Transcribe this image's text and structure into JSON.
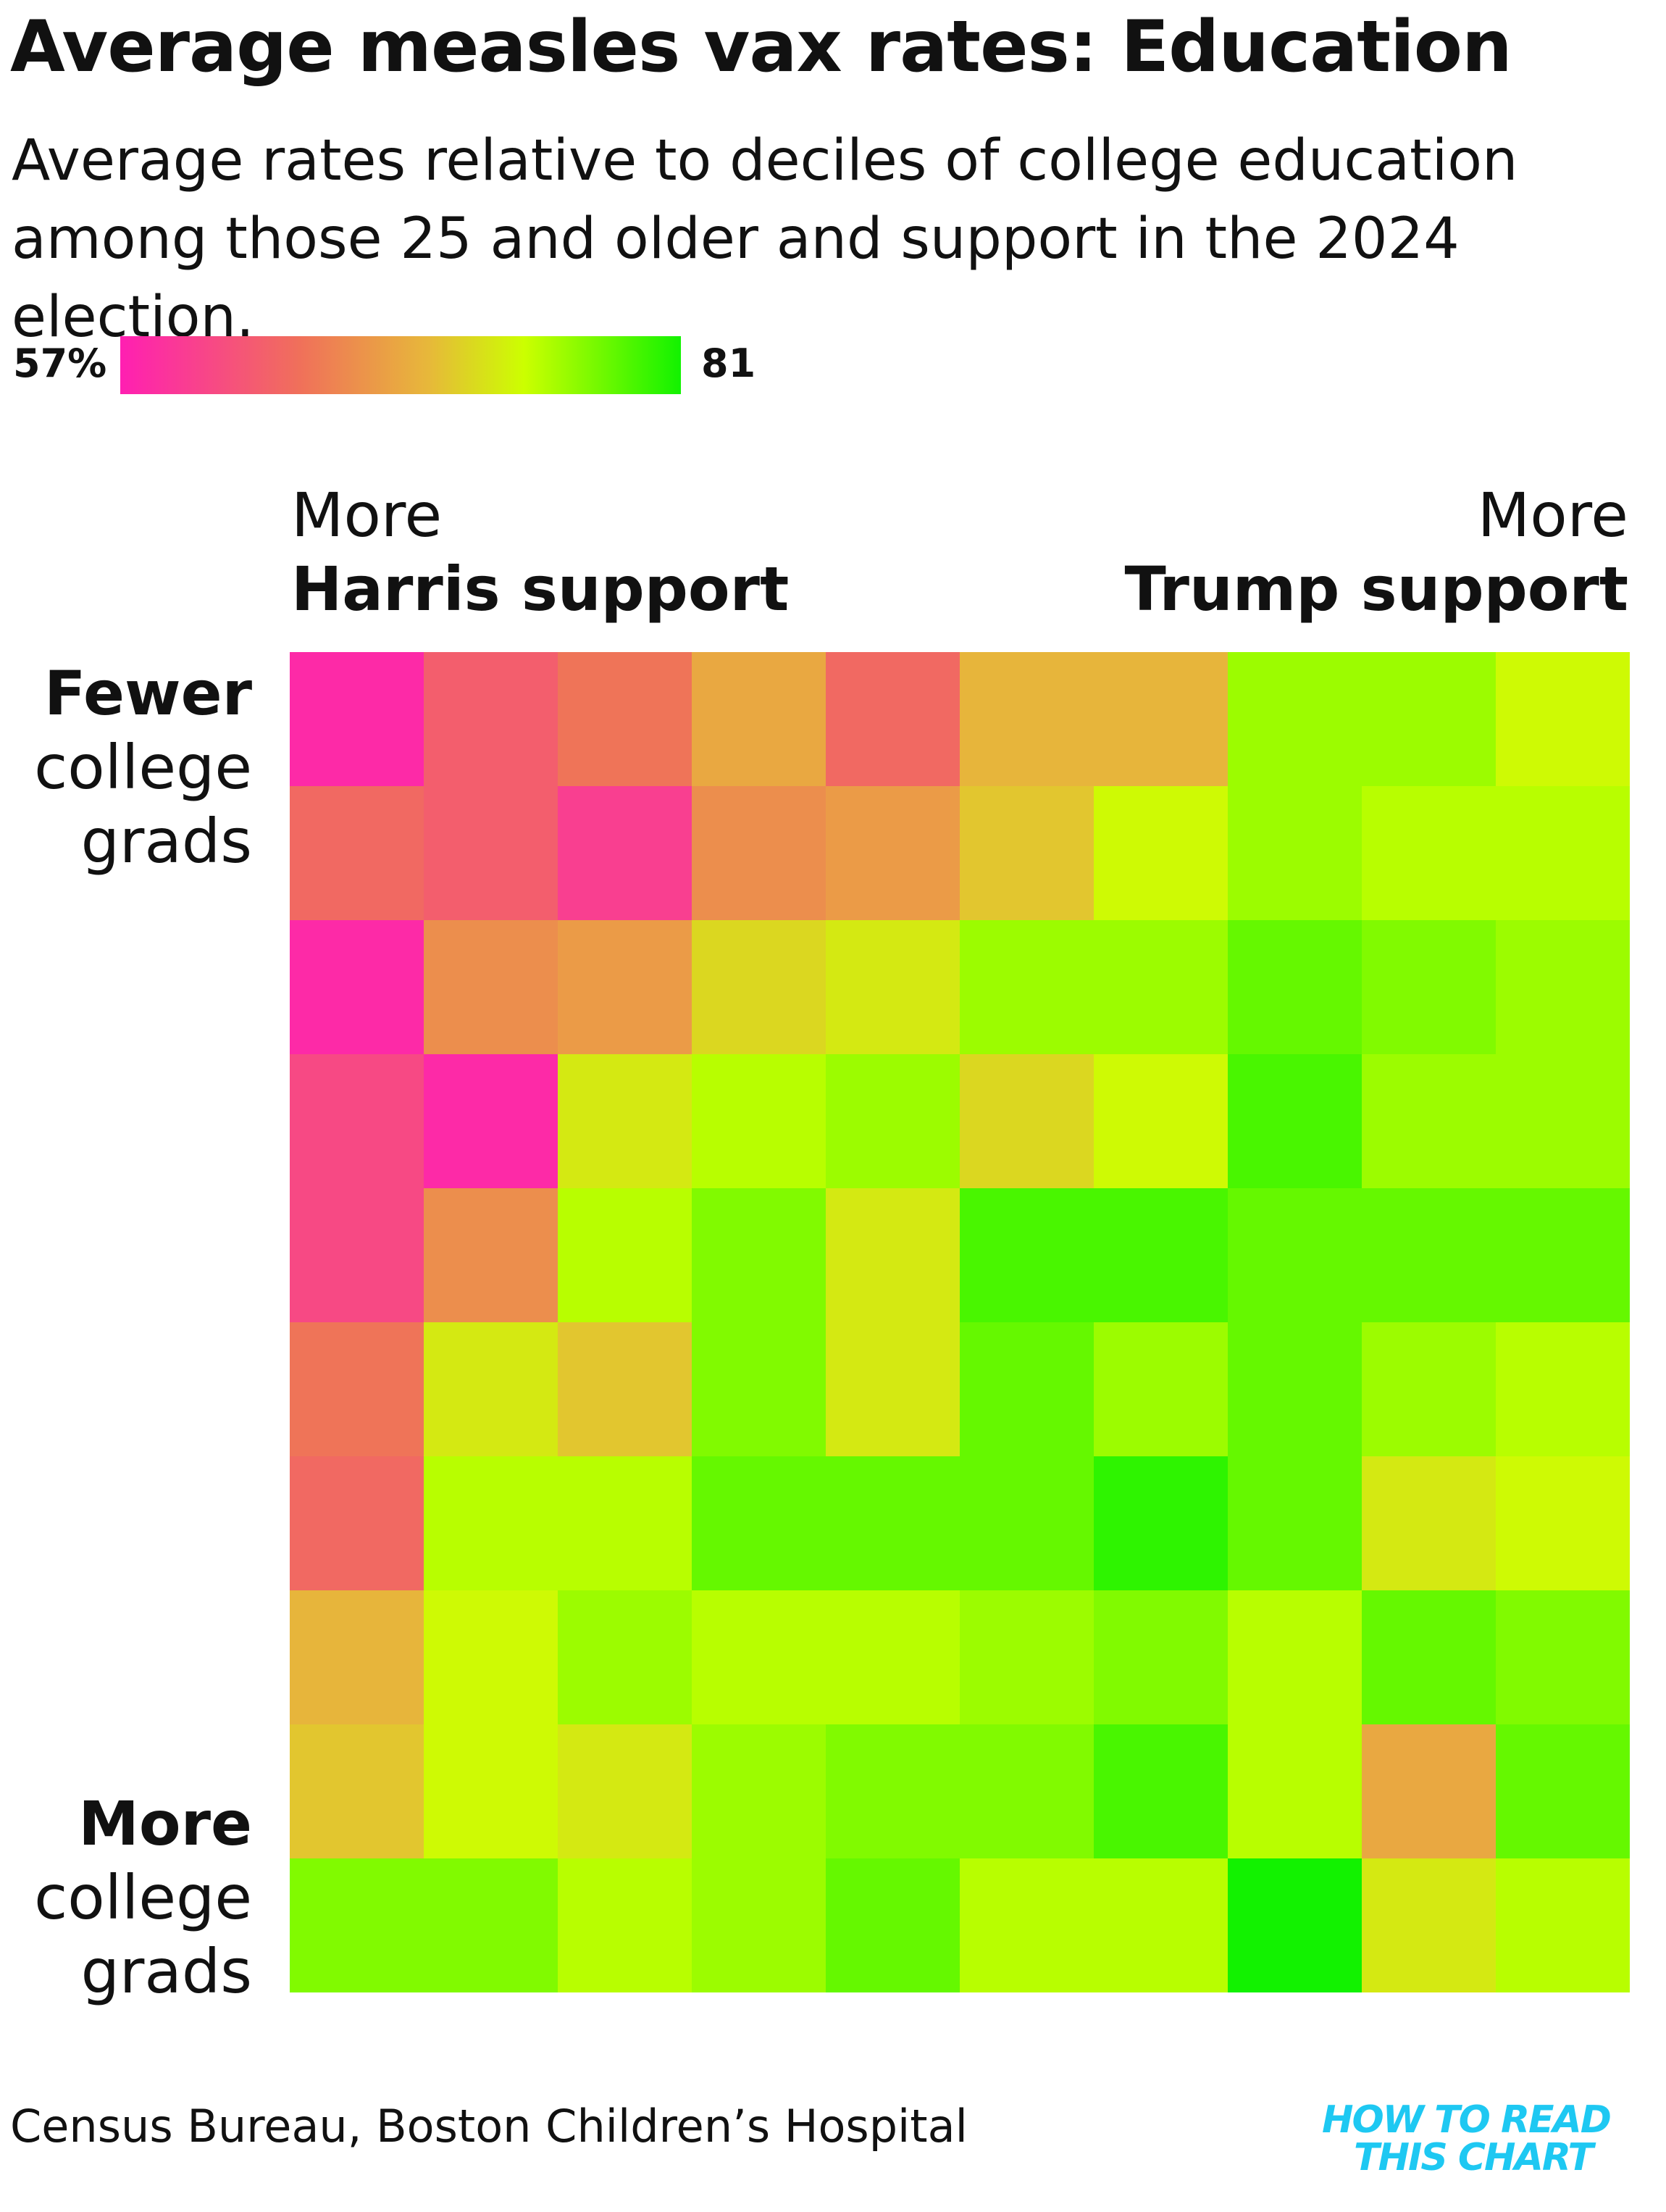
{
  "title": "Average measles vax rates: Education",
  "subtitle": "Average rates relative to deciles of college education among those 25 and older and support in the 2024 election.",
  "legend": {
    "min_label": "57%",
    "max_label": "81",
    "colors": [
      "#ff1fb2",
      "#f0705a",
      "#e7b83a",
      "#ccff00",
      "#12f200"
    ]
  },
  "column_labels": {
    "left_line1": "More",
    "left_line2": "Harris support",
    "right_line1": "More",
    "right_line2": "Trump support"
  },
  "row_labels": {
    "top_line1": "Fewer",
    "top_line2": "college",
    "top_line3": "grads",
    "bottom_line1": "More",
    "bottom_line2": "college",
    "bottom_line3": "grads"
  },
  "source": "Census Bureau, Boston Children’s Hospital",
  "brand": {
    "line1": "HOW TO READ",
    "line2": "THIS CHART"
  },
  "chart_data": {
    "type": "heatmap",
    "title": "Average measles vax rates: Education",
    "x_categories": [
      "1",
      "2",
      "3",
      "4",
      "5",
      "6",
      "7",
      "8",
      "9",
      "10"
    ],
    "y_categories": [
      "1",
      "2",
      "3",
      "4",
      "5",
      "6",
      "7",
      "8",
      "9",
      "10"
    ],
    "color_range": [
      57,
      81
    ],
    "values": [
      [
        58,
        63,
        65,
        69,
        64,
        70,
        70,
        76,
        76,
        74
      ],
      [
        64,
        63,
        60,
        67,
        68,
        71,
        74,
        76,
        75,
        75
      ],
      [
        58,
        67,
        68,
        72,
        73,
        76,
        76,
        78,
        77,
        76
      ],
      [
        61,
        58,
        73,
        75,
        76,
        72,
        74,
        79,
        76,
        76
      ],
      [
        61,
        67,
        75,
        77,
        73,
        79,
        79,
        78,
        78,
        78
      ],
      [
        65,
        73,
        71,
        77,
        73,
        78,
        76,
        78,
        76,
        75
      ],
      [
        64,
        75,
        75,
        78,
        78,
        78,
        80,
        78,
        73,
        74
      ],
      [
        70,
        74,
        76,
        75,
        75,
        76,
        77,
        75,
        78,
        77
      ],
      [
        71,
        74,
        73,
        76,
        77,
        77,
        79,
        75,
        69,
        78
      ],
      [
        77,
        77,
        75,
        76,
        78,
        75,
        75,
        81,
        73,
        75
      ]
    ]
  }
}
